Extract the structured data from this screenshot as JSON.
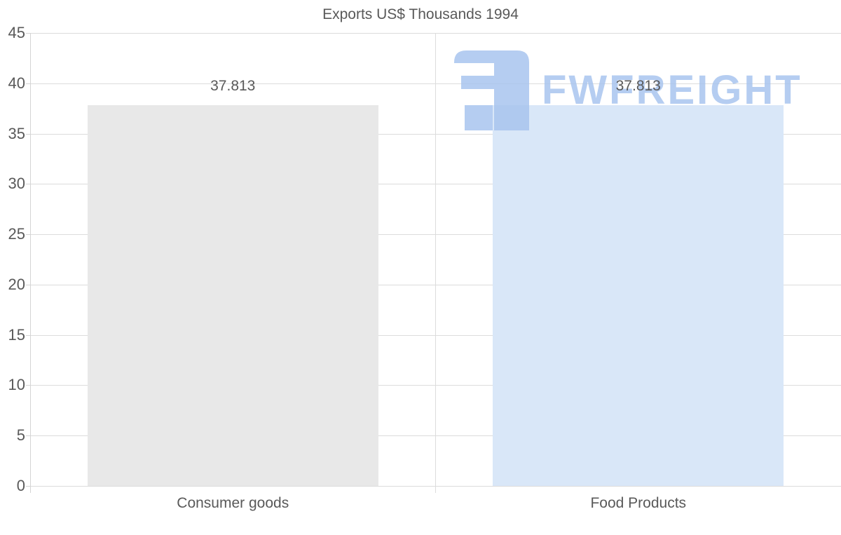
{
  "chart_data": {
    "type": "bar",
    "title": "Exports US$ Thousands 1994",
    "categories": [
      "Consumer goods",
      "Food Products"
    ],
    "values": [
      37.813,
      37.813
    ],
    "value_labels": [
      "37.813",
      "37.813"
    ],
    "bar_colors": [
      "#e8e8e8",
      "#d9e7f8"
    ],
    "ylim": [
      0,
      45
    ],
    "yticks": [
      0,
      5,
      10,
      15,
      20,
      25,
      30,
      35,
      40,
      45
    ],
    "xlabel": "",
    "ylabel": "",
    "grid": true,
    "legend": false
  },
  "colors": {
    "title_text": "#595959",
    "axis_text": "#595959",
    "gridline": "#dcdcdc",
    "axis_line": "#d4d4d4",
    "watermark": "#a6c3ee"
  },
  "watermark": {
    "brand_text": "FWFREIGHT",
    "logo": "fwfreight-logo"
  }
}
